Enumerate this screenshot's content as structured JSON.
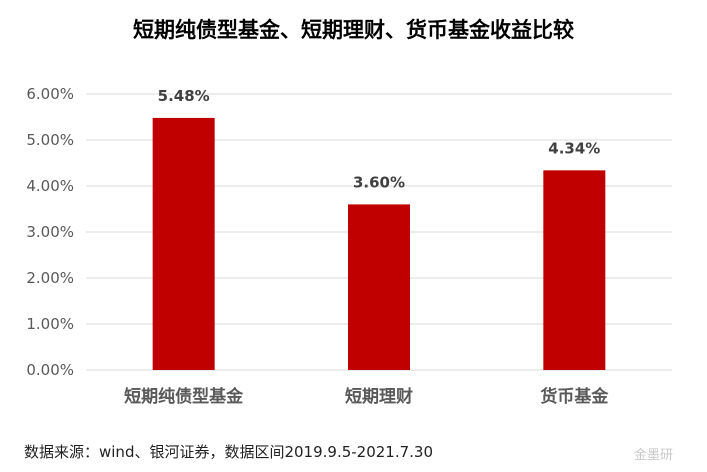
{
  "title": "短期纯债型基金、短期理财、货币基金收益比较",
  "source_note": "数据来源：wind、银河证券，数据区间2019.9.5-2021.7.30",
  "watermark": "金墨研",
  "colors": {
    "bar": "#c00000",
    "grid": "#d9d9d9",
    "axis_text": "#595959",
    "label_text": "#404040"
  },
  "chart_data": {
    "type": "bar",
    "title": "短期纯债型基金、短期理财、货币基金收益比较",
    "categories": [
      "短期纯债型基金",
      "短期理财",
      "货币基金"
    ],
    "values": [
      5.48,
      3.6,
      4.34
    ],
    "data_labels": [
      "5.48%",
      "3.60%",
      "4.34%"
    ],
    "ylim": [
      0,
      6
    ],
    "y_ticks": [
      0,
      1,
      2,
      3,
      4,
      5,
      6
    ],
    "y_tick_labels": [
      "0.00%",
      "1.00%",
      "2.00%",
      "3.00%",
      "4.00%",
      "5.00%",
      "6.00%"
    ],
    "xlabel": "",
    "ylabel": "",
    "grid": true,
    "legend": "none"
  }
}
